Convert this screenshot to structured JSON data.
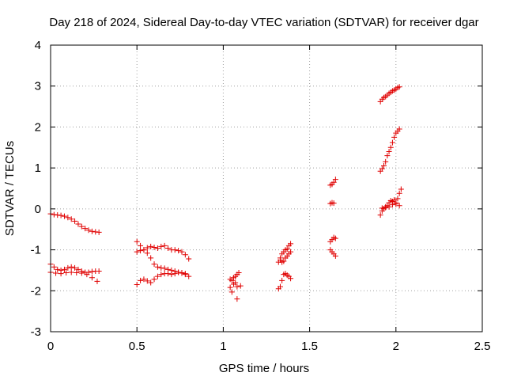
{
  "chart_data": {
    "type": "scatter",
    "title": "Day 218 of 2024, Sidereal Day-to-day VTEC variation (SDTVAR) for receiver dgar",
    "xlabel": "GPS time / hours",
    "ylabel": "SDTVAR / TECUs",
    "xlim": [
      0,
      2.5
    ],
    "ylim": [
      -3,
      4
    ],
    "xticks": [
      0,
      0.5,
      1,
      1.5,
      2,
      2.5
    ],
    "xtick_labels": [
      "0",
      "0.5",
      "1",
      "1.5",
      "2",
      "2.5"
    ],
    "yticks": [
      -3,
      -2,
      -1,
      0,
      1,
      2,
      3,
      4
    ],
    "ytick_labels": [
      "-3",
      "-2",
      "-1",
      "0",
      "1",
      "2",
      "3",
      "4"
    ],
    "grid": true,
    "marker": "+",
    "color": "#e00000",
    "series": [
      {
        "name": "s1",
        "x": [
          0.0,
          0.02,
          0.04,
          0.06,
          0.08,
          0.1,
          0.12,
          0.14,
          0.16,
          0.18,
          0.2,
          0.22,
          0.24,
          0.26,
          0.28
        ],
        "y": [
          -0.12,
          -0.14,
          -0.15,
          -0.16,
          -0.18,
          -0.21,
          -0.25,
          -0.3,
          -0.37,
          -0.43,
          -0.48,
          -0.52,
          -0.55,
          -0.56,
          -0.57
        ]
      },
      {
        "name": "s2",
        "x": [
          0.0,
          0.02,
          0.04,
          0.06,
          0.08,
          0.1,
          0.12,
          0.14,
          0.16,
          0.18,
          0.2,
          0.22,
          0.24,
          0.26,
          0.28
        ],
        "y": [
          -1.35,
          -1.42,
          -1.48,
          -1.5,
          -1.48,
          -1.44,
          -1.42,
          -1.44,
          -1.48,
          -1.52,
          -1.55,
          -1.55,
          -1.53,
          -1.52,
          -1.52
        ]
      },
      {
        "name": "s3",
        "x": [
          0.0,
          0.03,
          0.06,
          0.09,
          0.12,
          0.15,
          0.18,
          0.21,
          0.24,
          0.27
        ],
        "y": [
          -1.55,
          -1.57,
          -1.58,
          -1.56,
          -1.55,
          -1.56,
          -1.57,
          -1.6,
          -1.68,
          -1.77
        ]
      },
      {
        "name": "s4",
        "x": [
          0.5,
          0.52,
          0.54,
          0.56,
          0.58,
          0.6,
          0.62,
          0.64,
          0.66,
          0.68,
          0.7,
          0.72,
          0.74,
          0.76,
          0.78,
          0.8
        ],
        "y": [
          -0.8,
          -0.9,
          -1.0,
          -0.95,
          -0.92,
          -0.94,
          -0.96,
          -0.92,
          -0.9,
          -0.96,
          -1.0,
          -1.0,
          -1.02,
          -1.05,
          -1.12,
          -1.22
        ]
      },
      {
        "name": "s5",
        "x": [
          0.5,
          0.52,
          0.54,
          0.56,
          0.58,
          0.6,
          0.62,
          0.64,
          0.66,
          0.68,
          0.7,
          0.72,
          0.74,
          0.76,
          0.78
        ],
        "y": [
          -1.05,
          -1.02,
          -1.0,
          -1.08,
          -1.2,
          -1.35,
          -1.42,
          -1.44,
          -1.45,
          -1.48,
          -1.5,
          -1.52,
          -1.55,
          -1.57,
          -1.58
        ]
      },
      {
        "name": "s6",
        "x": [
          0.5,
          0.52,
          0.54,
          0.56,
          0.58,
          0.6,
          0.62,
          0.64,
          0.66,
          0.68,
          0.7,
          0.72,
          0.74,
          0.76,
          0.78,
          0.8
        ],
        "y": [
          -1.85,
          -1.75,
          -1.72,
          -1.76,
          -1.8,
          -1.72,
          -1.65,
          -1.6,
          -1.58,
          -1.58,
          -1.6,
          -1.58,
          -1.55,
          -1.56,
          -1.6,
          -1.65
        ]
      },
      {
        "name": "s7",
        "x": [
          1.04,
          1.05,
          1.06,
          1.07,
          1.08,
          1.09,
          1.1
        ],
        "y": [
          -1.72,
          -1.75,
          -1.68,
          -1.65,
          -1.6,
          -1.56,
          -1.88
        ]
      },
      {
        "name": "s8",
        "x": [
          1.04,
          1.05,
          1.06,
          1.07,
          1.08
        ],
        "y": [
          -1.92,
          -2.03,
          -1.84,
          -1.8,
          -1.9
        ]
      },
      {
        "name": "s9",
        "x": [
          1.08
        ],
        "y": [
          -2.2
        ]
      },
      {
        "name": "s10",
        "x": [
          1.32,
          1.33,
          1.34,
          1.35,
          1.36,
          1.37,
          1.38,
          1.39
        ],
        "y": [
          -1.3,
          -1.2,
          -1.1,
          -1.05,
          -1.0,
          -0.98,
          -0.9,
          -0.85
        ]
      },
      {
        "name": "s11",
        "x": [
          1.33,
          1.34,
          1.35,
          1.36,
          1.37,
          1.38,
          1.39
        ],
        "y": [
          -1.25,
          -1.3,
          -1.28,
          -1.2,
          -1.15,
          -1.1,
          -1.05
        ]
      },
      {
        "name": "s12",
        "x": [
          1.32,
          1.33,
          1.34,
          1.35,
          1.36,
          1.37,
          1.38,
          1.39
        ],
        "y": [
          -1.95,
          -1.9,
          -1.75,
          -1.6,
          -1.58,
          -1.62,
          -1.65,
          -1.7
        ]
      },
      {
        "name": "s13",
        "x": [
          1.62,
          1.63,
          1.64,
          1.65
        ],
        "y": [
          0.58,
          0.6,
          0.65,
          0.72
        ]
      },
      {
        "name": "s14",
        "x": [
          1.62,
          1.63,
          1.64
        ],
        "y": [
          0.13,
          0.15,
          0.14
        ]
      },
      {
        "name": "s15",
        "x": [
          1.62,
          1.63,
          1.64,
          1.65
        ],
        "y": [
          -0.8,
          -0.75,
          -0.7,
          -0.72
        ]
      },
      {
        "name": "s16",
        "x": [
          1.62,
          1.63,
          1.64,
          1.65
        ],
        "y": [
          -1.0,
          -1.05,
          -1.1,
          -1.15
        ]
      },
      {
        "name": "s17",
        "x": [
          1.91,
          1.92,
          1.93,
          1.94,
          1.95,
          1.96,
          1.97,
          1.98,
          1.99,
          2.0,
          2.01,
          2.02
        ],
        "y": [
          2.62,
          2.68,
          2.72,
          2.74,
          2.78,
          2.82,
          2.85,
          2.88,
          2.9,
          2.93,
          2.96,
          2.98
        ]
      },
      {
        "name": "s18",
        "x": [
          1.91,
          1.92,
          1.93,
          1.94,
          1.95,
          1.96,
          1.97,
          1.98,
          1.99,
          2.0,
          2.01,
          2.02
        ],
        "y": [
          0.92,
          0.98,
          1.05,
          1.15,
          1.3,
          1.4,
          1.5,
          1.62,
          1.75,
          1.85,
          1.9,
          1.95
        ]
      },
      {
        "name": "s19",
        "x": [
          1.91,
          1.92,
          1.93,
          1.94,
          1.95,
          1.96,
          1.97,
          1.98,
          1.99,
          2.0,
          2.01,
          2.02,
          2.03
        ],
        "y": [
          -0.15,
          -0.05,
          0.0,
          0.05,
          0.08,
          0.15,
          0.2,
          0.18,
          0.22,
          0.15,
          0.25,
          0.38,
          0.48
        ]
      },
      {
        "name": "s20",
        "x": [
          1.92,
          1.94,
          1.96,
          1.98,
          2.0,
          2.02
        ],
        "y": [
          0.02,
          0.03,
          0.05,
          0.1,
          0.12,
          0.08
        ]
      }
    ]
  }
}
